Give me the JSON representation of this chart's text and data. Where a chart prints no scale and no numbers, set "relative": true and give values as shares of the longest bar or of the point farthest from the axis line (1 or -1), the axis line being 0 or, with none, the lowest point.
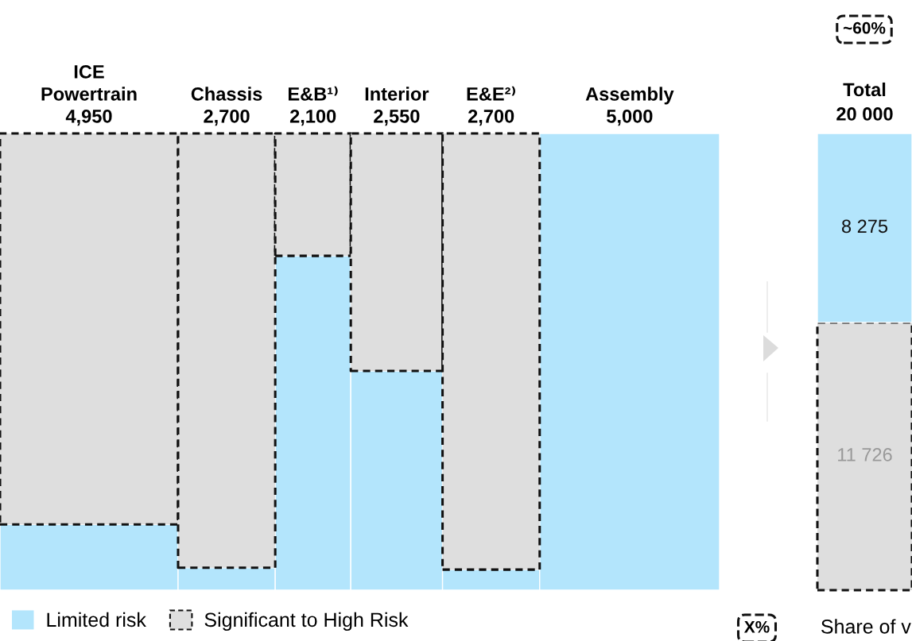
{
  "chart_data": [
    {
      "type": "bar",
      "stacked": true,
      "relative": true,
      "legend": "bottom left",
      "tick_labels": false,
      "categories": [
        "ICE\nPowertrain\n4,950",
        "Chassis\n2,700",
        "E&B¹⁾\n2,100",
        "Interior\n2,550",
        "E&E²⁾\n2,700",
        "Assembly\n5,000"
      ],
      "series": [
        {
          "name": "Limited risk",
          "color": "#b3e5fc",
          "values": [
            0.144,
            0.049,
            0.732,
            0.48,
            0.045,
            1.0
          ]
        },
        {
          "name": "Significant to High Risk",
          "color": "#dedede",
          "line_style": "dashed",
          "values": [
            0.856,
            0.951,
            0.268,
            0.52,
            0.955,
            0.0
          ]
        }
      ]
    },
    {
      "type": "bar",
      "stacked": true,
      "title": "Total\n20 000",
      "categories": [
        null
      ],
      "series": [
        {
          "color": "#dedede",
          "line_style": "dashed",
          "values": [
            11726
          ],
          "value_labels": [
            "11 726"
          ]
        },
        {
          "color": "#b3e5fc",
          "values": [
            8275
          ],
          "value_labels": [
            "8 275"
          ]
        }
      ],
      "annotations": [
        "~60%",
        "X%",
        "Share of v"
      ]
    }
  ]
}
